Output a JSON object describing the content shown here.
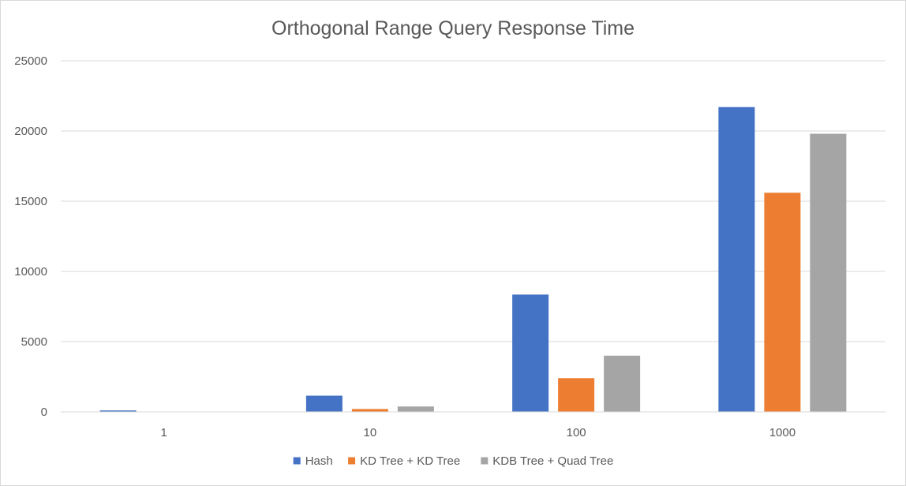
{
  "chart_data": {
    "type": "bar",
    "title": "Orthogonal Range Query Response Time",
    "xlabel": "",
    "ylabel": "",
    "categories": [
      "1",
      "10",
      "100",
      "1000"
    ],
    "series": [
      {
        "name": "Hash",
        "color": "#4472c4",
        "values": [
          100,
          1150,
          8350,
          21700
        ]
      },
      {
        "name": "KD Tree + KD Tree",
        "color": "#ed7d31",
        "values": [
          10,
          200,
          2400,
          15600
        ]
      },
      {
        "name": "KDB Tree + Quad Tree",
        "color": "#a5a5a5",
        "values": [
          10,
          380,
          4000,
          19800
        ]
      }
    ],
    "ylim": [
      0,
      25000
    ],
    "yticks": [
      0,
      5000,
      10000,
      15000,
      20000,
      25000
    ],
    "ytick_labels": [
      "0",
      "5000",
      "10000",
      "15000",
      "20000",
      "25000"
    ],
    "grid": true,
    "legend_position": "bottom"
  }
}
